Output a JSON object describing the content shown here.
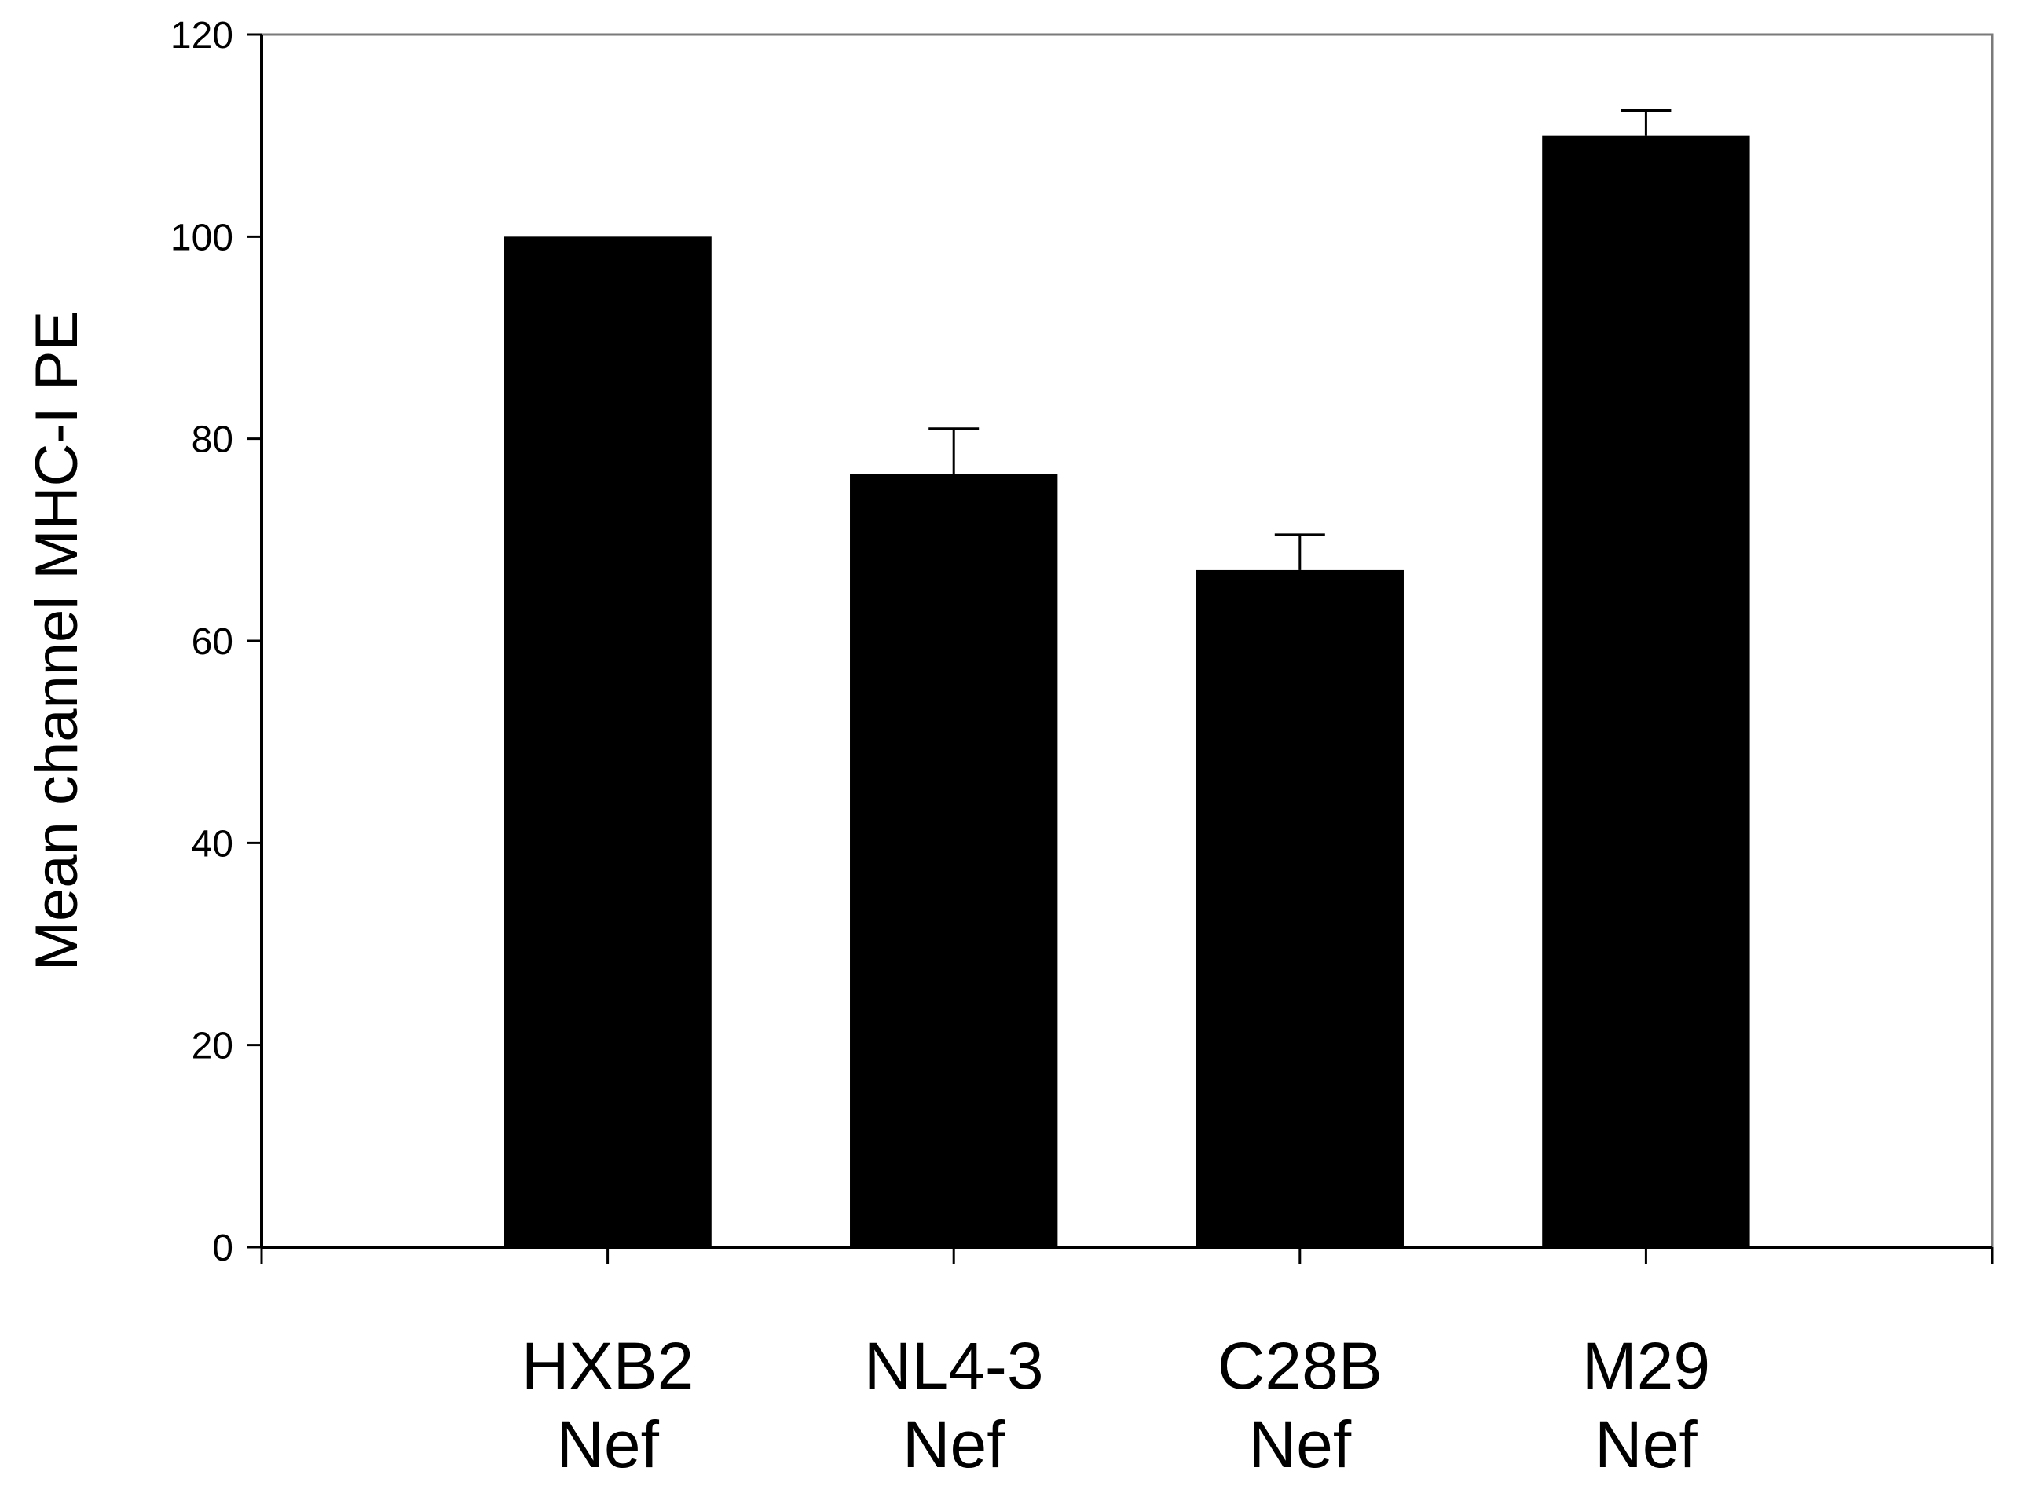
{
  "chart_data": {
    "type": "bar",
    "title": "",
    "xlabel": "",
    "ylabel": "Mean channel MHC-I PE",
    "ylim": [
      0,
      120
    ],
    "yticks": [
      0,
      20,
      40,
      60,
      80,
      100,
      120
    ],
    "categories": [
      [
        "HXB2",
        "Nef"
      ],
      [
        "NL4-3",
        "Nef"
      ],
      [
        "C28B",
        "Nef"
      ],
      [
        "M29",
        "Nef"
      ]
    ],
    "values": [
      100,
      76.5,
      67,
      110
    ],
    "errors": [
      0,
      4.5,
      3.5,
      2.5
    ],
    "grid": false,
    "legend": "none",
    "bar_color": "#000000"
  }
}
